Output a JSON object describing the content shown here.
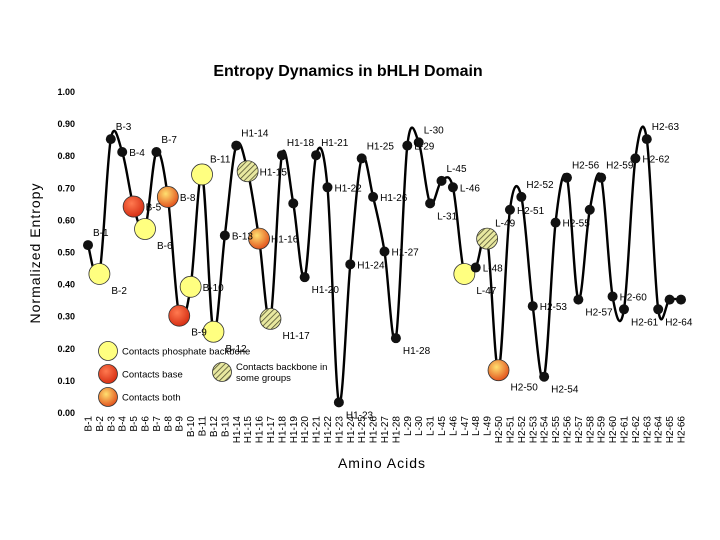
{
  "chart_data": {
    "type": "line",
    "title": "Entropy Dynamics in bHLH Domain",
    "xlabel": "Amino Acids",
    "ylabel": "Normalized Entropy",
    "ylim": [
      0,
      1
    ],
    "yticks": [
      "0.00",
      "0.10",
      "0.20",
      "0.30",
      "0.40",
      "0.50",
      "0.60",
      "0.70",
      "0.80",
      "0.90",
      "1.00"
    ],
    "grid": false,
    "categories": [
      "B-1",
      "B-2",
      "B-3",
      "B-4",
      "B-5",
      "B-6",
      "B-7",
      "B-8",
      "B-9",
      "B-10",
      "B-11",
      "B-12",
      "B-13",
      "H1-14",
      "H1-15",
      "H1-16",
      "H1-17",
      "H1-18",
      "H1-19",
      "H1-20",
      "H1-21",
      "H1-22",
      "H1-23",
      "H1-24",
      "H1-25",
      "H1-26",
      "H1-27",
      "H1-28",
      "L-29",
      "L-30",
      "L-31",
      "L-45",
      "L-46",
      "L-47",
      "L-48",
      "L-49",
      "H2-50",
      "H2-51",
      "H2-52",
      "H2-53",
      "H2-54",
      "H2-55",
      "H2-56",
      "H2-57",
      "H2-58",
      "H2-59",
      "H2-60",
      "H2-61",
      "H2-62",
      "H2-63",
      "H2-64",
      "H2-65",
      "H2-66"
    ],
    "values": [
      0.52,
      0.43,
      0.85,
      0.81,
      0.64,
      0.57,
      0.81,
      0.67,
      0.3,
      0.39,
      0.74,
      0.25,
      0.55,
      0.83,
      0.75,
      0.54,
      0.29,
      0.8,
      0.65,
      0.42,
      0.8,
      0.7,
      0.03,
      0.46,
      0.79,
      0.67,
      0.5,
      0.23,
      0.83,
      0.84,
      0.65,
      0.72,
      0.7,
      0.43,
      0.45,
      0.54,
      0.13,
      0.63,
      0.67,
      0.33,
      0.11,
      0.59,
      0.73,
      0.35,
      0.63,
      0.73,
      0.36,
      0.32,
      0.79,
      0.85,
      0.32,
      0.35,
      0.35
    ],
    "markers": [
      "none",
      "backbone",
      "none",
      "none",
      "base",
      "backbone",
      "none",
      "both",
      "base",
      "backbone",
      "backbone",
      "backbone",
      "none",
      "none",
      "some",
      "both",
      "some",
      "none",
      "none",
      "none",
      "none",
      "none",
      "none",
      "none",
      "none",
      "none",
      "none",
      "none",
      "none",
      "none",
      "none",
      "none",
      "none",
      "backbone",
      "none",
      "some",
      "both",
      "none",
      "none",
      "none",
      "none",
      "none",
      "none",
      "none",
      "none",
      "none",
      "none",
      "none",
      "none",
      "none",
      "none",
      "none",
      "none"
    ],
    "point_labels": [
      "B-1",
      "B-2",
      "B-3",
      "B-4",
      "B-5",
      "B-6",
      "B-7",
      "B-8",
      "B-9",
      "B-10",
      "B-11",
      "B-12",
      "B-13",
      "H1-14",
      "H1-15",
      "H1-16",
      "H1-17",
      "H1-18",
      "",
      "H1-20",
      "H1-21",
      "H1-22",
      "H1-23",
      "H1-24",
      "H1-25",
      "H1-26",
      "H1-27",
      "H1-28",
      "L-29",
      "L-30",
      "L-31",
      "L-45",
      "L-46",
      "L-47",
      "L-48",
      "L-49",
      "H2-50",
      "H2-51",
      "H2-52",
      "H2-53",
      "H2-54",
      "H2-55",
      "H2-56",
      "H2-57",
      "",
      "H2-59",
      "H2-60",
      "H2-61",
      "H2-62",
      "H2-63",
      "H2-64",
      "",
      ""
    ],
    "legend": [
      {
        "key": "backbone",
        "label": "Contacts phosphate backbone",
        "color": "#ffff80"
      },
      {
        "key": "base",
        "label": "Contacts base",
        "color": "#e8361c"
      },
      {
        "key": "both",
        "label": "Contacts both",
        "color": "#f07020"
      },
      {
        "key": "some",
        "label": "Contacts backbone in some groups",
        "color": "#b0b070"
      }
    ],
    "legend_placement": "lower-left"
  }
}
